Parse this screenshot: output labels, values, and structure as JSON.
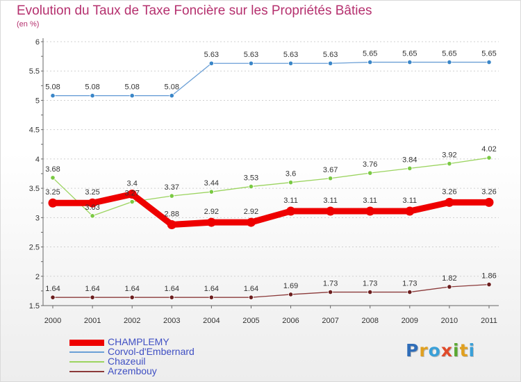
{
  "colors": {
    "title": "#b5306e",
    "legend_text": "#3f4fc3",
    "axis": "#666666",
    "grid": "#cfcfcf",
    "label_text": "#333333"
  },
  "logo": {
    "text": "Proxiti",
    "letters": [
      {
        "ch": "P",
        "color": "#2f6db8"
      },
      {
        "ch": "r",
        "color": "#e0a020"
      },
      {
        "ch": "o",
        "color": "#3aa0d8"
      },
      {
        "ch": "x",
        "color": "#e04a2a"
      },
      {
        "ch": "i",
        "color": "#5aa832"
      },
      {
        "ch": "t",
        "color": "#e0a020"
      },
      {
        "ch": "i",
        "color": "#3aa0d8"
      }
    ]
  },
  "chart_data": {
    "type": "line",
    "title": "Evolution du Taux de Taxe Foncière sur les Propriétés Bâties",
    "subtitle": "(en %)",
    "categories": [
      "2000",
      "2001",
      "2002",
      "2003",
      "2004",
      "2005",
      "2006",
      "2007",
      "2008",
      "2009",
      "2010",
      "2011"
    ],
    "ylim": [
      1.5,
      6
    ],
    "yticks": [
      1.5,
      2,
      2.5,
      3,
      3.5,
      4,
      4.5,
      5,
      5.5,
      6
    ],
    "ytick_labels": [
      "1.5",
      "2",
      "2.5",
      "3",
      "3.5",
      "4",
      "4.5",
      "5",
      "5.5",
      "6"
    ],
    "grid": "horizontal",
    "legend_position": "bottom-left",
    "series": [
      {
        "name": "Corvol-d'Embernard",
        "color": "#6a9fd6",
        "point_color": "#3a86c8",
        "width": "thin",
        "values": [
          5.08,
          5.08,
          5.08,
          5.08,
          5.63,
          5.63,
          5.63,
          5.63,
          5.65,
          5.65,
          5.65,
          5.65
        ],
        "labels": [
          "5.08",
          "5.08",
          "5.08",
          "5.08",
          "5.63",
          "5.63",
          "5.63",
          "5.63",
          "5.65",
          "5.65",
          "5.65",
          "5.65"
        ]
      },
      {
        "name": "Chazeuil",
        "color": "#9bd45f",
        "point_color": "#7ac943",
        "width": "thin",
        "values": [
          3.68,
          3.03,
          3.27,
          3.37,
          3.44,
          3.53,
          3.6,
          3.67,
          3.76,
          3.84,
          3.92,
          4.02
        ],
        "labels": [
          "3.68",
          "3.03",
          "3.27",
          "3.37",
          "3.44",
          "3.53",
          "3.6",
          "3.67",
          "3.76",
          "3.84",
          "3.92",
          "4.02"
        ]
      },
      {
        "name": "Arzembouy",
        "color": "#8b3a3a",
        "point_color": "#6b1e1e",
        "width": "thin",
        "values": [
          1.64,
          1.64,
          1.64,
          1.64,
          1.64,
          1.64,
          1.69,
          1.73,
          1.73,
          1.73,
          1.82,
          1.86
        ],
        "labels": [
          "1.64",
          "1.64",
          "1.64",
          "1.64",
          "1.64",
          "1.64",
          "1.69",
          "1.73",
          "1.73",
          "1.73",
          "1.82",
          "1.86"
        ]
      },
      {
        "name": "CHAMPLEMY",
        "color": "#ee0000",
        "point_color": "#ee0000",
        "width": "thick",
        "values": [
          3.25,
          3.25,
          3.4,
          2.88,
          2.92,
          2.92,
          3.11,
          3.11,
          3.11,
          3.11,
          3.26,
          3.26
        ],
        "labels": [
          "3.25",
          "3.25",
          "3.4",
          "2.88",
          "2.92",
          "2.92",
          "3.11",
          "3.11",
          "3.11",
          "3.11",
          "3.26",
          "3.26"
        ]
      }
    ],
    "legend": [
      {
        "name": "CHAMPLEMY",
        "color": "#ee0000",
        "width": "thick"
      },
      {
        "name": "Corvol-d'Embernard",
        "color": "#6a9fd6",
        "width": "thin"
      },
      {
        "name": "Chazeuil",
        "color": "#9bd45f",
        "width": "thin"
      },
      {
        "name": "Arzembouy",
        "color": "#8b3a3a",
        "width": "thin"
      }
    ]
  }
}
